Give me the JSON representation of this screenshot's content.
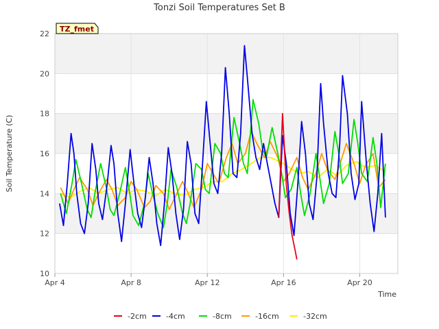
{
  "chart_data": {
    "type": "line",
    "title": "Tonzi Soil Temperatures Set B",
    "xlabel": "Time",
    "ylabel": "Soil Temperature (C)",
    "badge": "TZ_fmet",
    "ylim": [
      10,
      22
    ],
    "yticks": [
      10,
      12,
      14,
      16,
      18,
      20,
      22
    ],
    "xlim": [
      4.0,
      22.0
    ],
    "xticks": [
      {
        "value": 4,
        "label": "Apr 4"
      },
      {
        "value": 8,
        "label": "Apr 8"
      },
      {
        "value": 12,
        "label": "Apr 12"
      },
      {
        "value": 16,
        "label": "Apr 16"
      },
      {
        "value": 20,
        "label": "Apr 20"
      }
    ],
    "grid": true,
    "legend_position": "bottom",
    "series": [
      {
        "name": "-2cm",
        "color": "#e8001c",
        "x": [
          15.75,
          15.85,
          15.95,
          16.05,
          16.15,
          16.3,
          16.45,
          16.6,
          16.7
        ],
        "y": [
          12.8,
          15.5,
          18.0,
          16.2,
          14.4,
          13.0,
          11.9,
          11.2,
          10.7
        ]
      },
      {
        "name": "-4cm",
        "color": "#0000e6",
        "x": [
          4.25,
          4.45,
          4.65,
          4.85,
          5.0,
          5.15,
          5.35,
          5.55,
          5.75,
          5.95,
          6.15,
          6.3,
          6.5,
          6.75,
          6.95,
          7.1,
          7.3,
          7.5,
          7.7,
          7.95,
          8.15,
          8.35,
          8.55,
          8.75,
          8.95,
          9.15,
          9.35,
          9.55,
          9.75,
          9.95,
          10.15,
          10.35,
          10.55,
          10.75,
          10.95,
          11.15,
          11.35,
          11.55,
          11.75,
          11.95,
          12.15,
          12.35,
          12.55,
          12.75,
          12.95,
          13.15,
          13.35,
          13.55,
          13.75,
          13.95,
          14.1,
          14.35,
          14.55,
          14.75,
          14.95,
          15.15,
          15.35,
          15.55,
          15.75,
          15.95,
          16.15,
          16.35,
          16.55,
          16.75,
          16.95,
          17.15,
          17.35,
          17.55,
          17.75,
          17.95,
          18.1,
          18.35,
          18.55,
          18.75,
          18.95,
          19.1,
          19.35,
          19.55,
          19.75,
          19.95,
          20.1,
          20.35,
          20.55,
          20.75,
          20.95,
          21.15,
          21.35
        ],
        "y": [
          13.5,
          12.4,
          14.5,
          17.0,
          16.0,
          14.0,
          12.5,
          12.0,
          13.5,
          16.5,
          15.2,
          13.5,
          12.7,
          14.5,
          16.4,
          15.5,
          13.0,
          11.6,
          13.5,
          16.2,
          14.5,
          13.0,
          12.3,
          13.8,
          15.8,
          14.5,
          12.5,
          11.4,
          13.5,
          16.3,
          15.0,
          13.0,
          11.7,
          13.2,
          16.6,
          15.5,
          13.0,
          12.5,
          15.5,
          18.6,
          16.5,
          14.5,
          14.0,
          16.0,
          20.3,
          18.0,
          15.0,
          14.8,
          17.0,
          21.4,
          19.8,
          17.0,
          15.8,
          15.2,
          16.5,
          15.5,
          14.5,
          13.5,
          12.8,
          16.9,
          15.5,
          13.0,
          11.9,
          14.5,
          17.6,
          16.0,
          13.5,
          12.7,
          14.8,
          19.5,
          17.5,
          15.0,
          14.0,
          13.8,
          16.5,
          19.9,
          18.0,
          15.0,
          13.7,
          14.5,
          18.6,
          15.5,
          13.5,
          12.1,
          14.0,
          17.0,
          12.8
        ]
      },
      {
        "name": "-8cm",
        "color": "#00dd00",
        "x": [
          4.3,
          4.6,
          4.9,
          5.1,
          5.4,
          5.7,
          5.9,
          6.1,
          6.4,
          6.7,
          6.9,
          7.1,
          7.4,
          7.7,
          7.9,
          8.1,
          8.4,
          8.7,
          8.9,
          9.1,
          9.4,
          9.7,
          9.9,
          10.1,
          10.4,
          10.7,
          10.9,
          11.1,
          11.4,
          11.7,
          11.9,
          12.1,
          12.4,
          12.7,
          12.9,
          13.1,
          13.4,
          13.7,
          13.9,
          14.1,
          14.4,
          14.7,
          14.9,
          15.1,
          15.4,
          15.7,
          15.9,
          16.1,
          16.4,
          16.7,
          16.9,
          17.1,
          17.4,
          17.7,
          17.9,
          18.1,
          18.4,
          18.7,
          18.9,
          19.1,
          19.4,
          19.7,
          19.9,
          20.1,
          20.4,
          20.7,
          20.9,
          21.1,
          21.35
        ],
        "y": [
          14.0,
          13.0,
          14.5,
          15.7,
          14.5,
          13.2,
          12.8,
          14.0,
          15.5,
          14.3,
          13.2,
          12.9,
          14.0,
          15.3,
          14.2,
          12.9,
          12.4,
          13.5,
          15.0,
          14.1,
          13.0,
          12.3,
          13.5,
          15.2,
          14.3,
          13.0,
          12.5,
          13.5,
          15.5,
          15.2,
          14.2,
          14.0,
          16.5,
          16.0,
          15.0,
          14.8,
          17.8,
          16.5,
          15.5,
          15.0,
          18.7,
          17.5,
          16.2,
          15.8,
          17.3,
          16.0,
          15.0,
          13.8,
          14.2,
          15.3,
          14.0,
          12.9,
          14.0,
          16.0,
          14.8,
          13.5,
          14.5,
          17.1,
          16.0,
          14.5,
          15.0,
          17.7,
          16.5,
          15.0,
          14.6,
          16.8,
          15.5,
          13.3,
          15.5
        ]
      },
      {
        "name": "-16cm",
        "color": "#ff9900",
        "x": [
          4.3,
          4.7,
          5.0,
          5.3,
          5.7,
          6.0,
          6.3,
          6.7,
          7.0,
          7.3,
          7.7,
          8.0,
          8.3,
          8.7,
          9.0,
          9.3,
          9.7,
          10.0,
          10.3,
          10.7,
          11.0,
          11.3,
          11.7,
          12.0,
          12.3,
          12.6,
          13.0,
          13.3,
          13.6,
          14.0,
          14.3,
          14.6,
          15.0,
          15.3,
          15.7,
          16.0,
          16.3,
          16.7,
          17.0,
          17.3,
          17.7,
          18.0,
          18.3,
          18.7,
          19.0,
          19.3,
          19.7,
          20.0,
          20.3,
          20.7,
          21.0,
          21.35
        ],
        "y": [
          14.3,
          13.5,
          14.2,
          14.8,
          14.2,
          13.4,
          14.0,
          14.7,
          14.2,
          13.4,
          13.8,
          14.6,
          14.2,
          13.3,
          13.6,
          14.4,
          14.0,
          13.2,
          13.8,
          14.6,
          14.0,
          13.3,
          14.2,
          15.5,
          15.0,
          14.5,
          15.8,
          16.5,
          15.5,
          16.0,
          17.1,
          16.5,
          15.8,
          16.6,
          15.8,
          14.6,
          15.0,
          15.8,
          14.8,
          14.2,
          15.0,
          16.0,
          15.2,
          14.7,
          15.6,
          16.5,
          15.5,
          14.5,
          15.4,
          16.0,
          14.3,
          14.7
        ]
      },
      {
        "name": "-32cm",
        "color": "#ffee00",
        "x": [
          4.3,
          4.8,
          5.3,
          5.8,
          6.3,
          6.8,
          7.3,
          7.8,
          8.3,
          8.8,
          9.3,
          9.8,
          10.3,
          10.8,
          11.3,
          11.8,
          12.3,
          12.8,
          13.3,
          13.8,
          14.3,
          14.8,
          15.3,
          15.8,
          16.3,
          16.8,
          17.3,
          17.8,
          18.3,
          18.8,
          19.3,
          19.8,
          20.3,
          20.8,
          21.35
        ],
        "y": [
          14.0,
          13.8,
          14.1,
          14.3,
          14.0,
          14.2,
          14.3,
          14.0,
          14.2,
          14.1,
          13.9,
          14.2,
          14.0,
          13.9,
          14.2,
          14.3,
          14.6,
          14.6,
          15.0,
          15.2,
          15.5,
          15.8,
          15.8,
          15.6,
          15.3,
          15.0,
          15.1,
          14.8,
          15.2,
          14.9,
          15.4,
          15.6,
          15.3,
          15.4,
          15.1
        ]
      }
    ]
  }
}
